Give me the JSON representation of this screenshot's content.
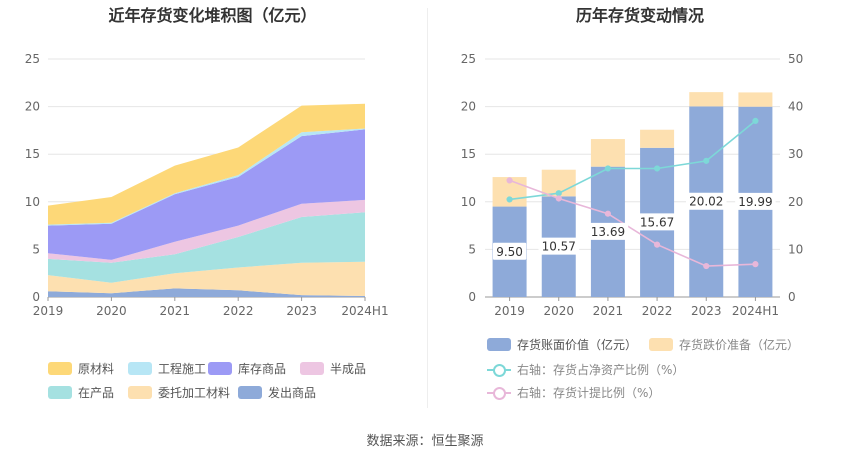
{
  "source": "数据来源：恒生聚源",
  "chart_data": [
    {
      "type": "area",
      "stacked": true,
      "title": "近年存货变化堆积图（亿元）",
      "categories": [
        "2019",
        "2020",
        "2021",
        "2022",
        "2023",
        "2024H1"
      ],
      "ylim": [
        0,
        25
      ],
      "yticks": [
        0,
        5,
        10,
        15,
        20,
        25
      ],
      "series": [
        {
          "name": "发出商品",
          "color": "#8eaad9",
          "values": [
            0.6,
            0.4,
            0.9,
            0.7,
            0.2,
            0.1
          ]
        },
        {
          "name": "委托加工材料",
          "color": "#fde0b0",
          "values": [
            1.7,
            1.1,
            1.6,
            2.4,
            3.4,
            3.6
          ]
        },
        {
          "name": "在产品",
          "color": "#a5e1e1",
          "values": [
            1.7,
            2.1,
            2.0,
            3.2,
            4.8,
            5.2
          ]
        },
        {
          "name": "半成品",
          "color": "#edc6e2",
          "values": [
            0.6,
            0.3,
            1.3,
            1.2,
            1.4,
            1.3
          ]
        },
        {
          "name": "库存商品",
          "color": "#9c9af5",
          "values": [
            2.9,
            3.8,
            5.0,
            5.1,
            7.1,
            7.4
          ]
        },
        {
          "name": "工程施工",
          "color": "#b7e6f5",
          "values": [
            0.1,
            0.1,
            0.1,
            0.2,
            0.4,
            0.1
          ]
        },
        {
          "name": "原材料",
          "color": "#fdd878",
          "values": [
            2.0,
            2.7,
            2.9,
            2.9,
            2.8,
            2.6
          ]
        }
      ],
      "legend_order": [
        "原材料",
        "工程施工",
        "库存商品",
        "半成品",
        "在产品",
        "委托加工材料",
        "发出商品"
      ]
    },
    {
      "type": "bar",
      "stacked": true,
      "dual_axis": true,
      "title": "历年存货变动情况",
      "categories": [
        "2019",
        "2020",
        "2021",
        "2022",
        "2023",
        "2024H1"
      ],
      "ylim": [
        0,
        25
      ],
      "yticks": [
        0,
        5,
        10,
        15,
        20,
        25
      ],
      "y2lim": [
        0,
        50
      ],
      "y2ticks": [
        0,
        10,
        20,
        30,
        40,
        50
      ],
      "bars": [
        {
          "name": "存货账面价值（亿元）",
          "color": "#8eaad9",
          "values": [
            9.5,
            10.57,
            13.69,
            15.67,
            20.02,
            19.99
          ],
          "labels": [
            "9.50",
            "10.57",
            "13.69",
            "15.67",
            "20.02",
            "19.99"
          ]
        },
        {
          "name": "存货跌价准备（亿元）",
          "color": "#fde0b0",
          "values": [
            3.1,
            2.8,
            2.9,
            1.9,
            1.5,
            1.5
          ]
        }
      ],
      "lines": [
        {
          "name": "右轴：存货占净资产比例（%）",
          "color": "#7dd8d8",
          "values": [
            20.5,
            21.8,
            27.0,
            27.0,
            28.6,
            37.0
          ]
        },
        {
          "name": "右轴：存货计提比例（%）",
          "color": "#e8b7d9",
          "values": [
            24.5,
            20.7,
            17.5,
            11.0,
            6.5,
            6.9
          ]
        }
      ]
    }
  ]
}
